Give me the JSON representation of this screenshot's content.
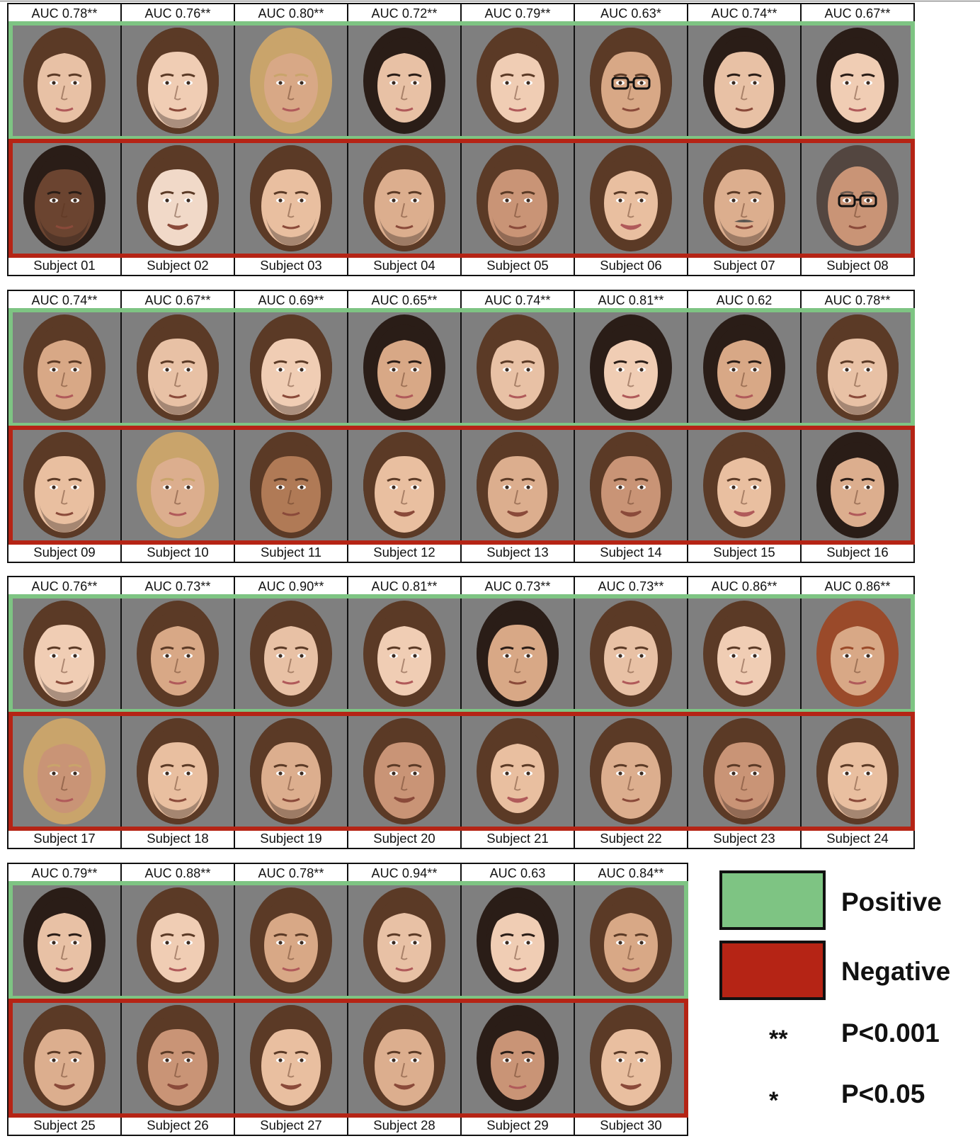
{
  "legend": {
    "positive_label": "Positive",
    "negative_label": "Negative",
    "positive_color": "#7ec483",
    "negative_color": "#b52415",
    "sig_high_symbol": "**",
    "sig_high_text": "P<0.001",
    "sig_low_symbol": "*",
    "sig_low_text": "P<0.05"
  },
  "cell_background": "#7f7f7f",
  "panels": [
    {
      "columns": [
        {
          "auc": "AUC 0.78**",
          "subject": "Subject 01",
          "positive_face": "female-face-brown-bangs",
          "negative_face": "male-face-dark-skin-beard"
        },
        {
          "auc": "AUC 0.76**",
          "subject": "Subject 02",
          "positive_face": "male-face-stubble",
          "negative_face": "male-face-pale-smiling"
        },
        {
          "auc": "AUC 0.80**",
          "subject": "Subject 03",
          "positive_face": "female-face-blonde",
          "negative_face": "male-face-stubble"
        },
        {
          "auc": "AUC 0.72**",
          "subject": "Subject 04",
          "positive_face": "female-face-dark-hair",
          "negative_face": "male-face-stubble"
        },
        {
          "auc": "AUC 0.79**",
          "subject": "Subject 05",
          "positive_face": "female-face-brown-hair",
          "negative_face": "male-face-stubble"
        },
        {
          "auc": "AUC 0.63*",
          "subject": "Subject 06",
          "positive_face": "male-face-glasses",
          "negative_face": "female-face-smiling"
        },
        {
          "auc": "AUC 0.74**",
          "subject": "Subject 07",
          "positive_face": "male-face-dark-hair",
          "negative_face": "male-face-older-mustache"
        },
        {
          "auc": "AUC 0.67**",
          "subject": "Subject 08",
          "positive_face": "female-face-dark-hair",
          "negative_face": "male-face-bald-glasses"
        }
      ]
    },
    {
      "columns": [
        {
          "auc": "AUC 0.74**",
          "subject": "Subject 09",
          "positive_face": "female-face-brown-hair",
          "negative_face": "male-face-stubble"
        },
        {
          "auc": "AUC 0.67**",
          "subject": "Subject 10",
          "positive_face": "male-face-stubble",
          "negative_face": "female-face-blonde"
        },
        {
          "auc": "AUC 0.69**",
          "subject": "Subject 11",
          "positive_face": "male-face-tousled-hair",
          "negative_face": "male-face-tan"
        },
        {
          "auc": "AUC 0.65**",
          "subject": "Subject 12",
          "positive_face": "female-face-dark-hair",
          "negative_face": "male-face-smiling"
        },
        {
          "auc": "AUC 0.74**",
          "subject": "Subject 13",
          "positive_face": "female-face-brown-hair",
          "negative_face": "male-face-smiling"
        },
        {
          "auc": "AUC 0.81**",
          "subject": "Subject 14",
          "positive_face": "female-face-dark-hair",
          "negative_face": "male-face-smiling"
        },
        {
          "auc": "AUC 0.62",
          "subject": "Subject 15",
          "positive_face": "female-face-dark-hair",
          "negative_face": "female-face-smiling"
        },
        {
          "auc": "AUC 0.78**",
          "subject": "Subject 16",
          "positive_face": "male-face-stubble",
          "negative_face": "female-face-dark-hair"
        }
      ]
    },
    {
      "columns": [
        {
          "auc": "AUC 0.76**",
          "subject": "Subject 17",
          "positive_face": "male-face-stubble",
          "negative_face": "female-face-blonde"
        },
        {
          "auc": "AUC 0.73**",
          "subject": "Subject 18",
          "positive_face": "female-face-brown-hair",
          "negative_face": "male-face-stubble"
        },
        {
          "auc": "AUC 0.90**",
          "subject": "Subject 19",
          "positive_face": "female-face-brown-hair",
          "negative_face": "male-face-stubble"
        },
        {
          "auc": "AUC 0.81**",
          "subject": "Subject 20",
          "positive_face": "female-face-brown-hair",
          "negative_face": "male-face-smiling"
        },
        {
          "auc": "AUC 0.73**",
          "subject": "Subject 21",
          "positive_face": "male-face-dark-hair",
          "negative_face": "female-face-smiling"
        },
        {
          "auc": "AUC 0.73**",
          "subject": "Subject 22",
          "positive_face": "female-face-brown-hair",
          "negative_face": "male-face-short-hair"
        },
        {
          "auc": "AUC 0.86**",
          "subject": "Subject 23",
          "positive_face": "female-face-brown-hair",
          "negative_face": "male-face-stubble"
        },
        {
          "auc": "AUC 0.86**",
          "subject": "Subject 24",
          "positive_face": "female-face-red-hair",
          "negative_face": "male-face-stubble"
        }
      ]
    },
    {
      "columns": [
        {
          "auc": "AUC 0.79**",
          "subject": "Subject 25",
          "positive_face": "female-face-dark-hair",
          "negative_face": "male-face-smiling"
        },
        {
          "auc": "AUC 0.88**",
          "subject": "Subject 26",
          "positive_face": "female-face-brown-hair",
          "negative_face": "male-face-smiling"
        },
        {
          "auc": "AUC 0.78**",
          "subject": "Subject 27",
          "positive_face": "female-face-brown-hair",
          "negative_face": "male-face-smiling"
        },
        {
          "auc": "AUC 0.94**",
          "subject": "Subject 28",
          "positive_face": "female-face-brown-hair",
          "negative_face": "male-face-smiling"
        },
        {
          "auc": "AUC 0.63",
          "subject": "Subject 29",
          "positive_face": "female-face-dark-hair",
          "negative_face": "female-face-dark-hair"
        },
        {
          "auc": "AUC 0.84**",
          "subject": "Subject 30",
          "positive_face": "female-face-brown-hair",
          "negative_face": "male-face-smiling"
        }
      ]
    }
  ]
}
